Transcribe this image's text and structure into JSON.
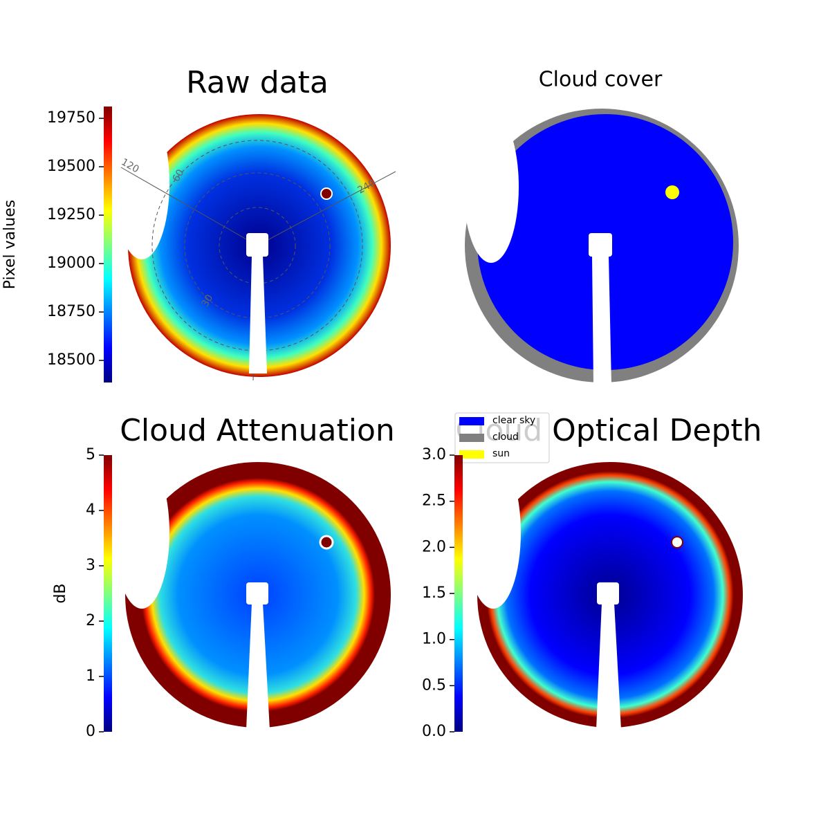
{
  "chart_data": [
    {
      "type": "image",
      "title": "Raw data",
      "colorbar_label": "Pixel values",
      "colormap": "jet",
      "ylim": [
        18386,
        19811
      ],
      "yticks": [
        18500,
        18750,
        19000,
        19250,
        19500,
        19750
      ],
      "annotations": [
        "120",
        "60",
        "240",
        "30"
      ]
    },
    {
      "type": "image",
      "title": "Cloud cover",
      "categories": [
        "clear sky",
        "cloud",
        "sun"
      ],
      "colors": [
        "#0000ff",
        "#808080",
        "#ffff00"
      ]
    },
    {
      "type": "image",
      "title": "Cloud Attenuation",
      "colorbar_label": "dB",
      "colormap": "jet",
      "ylim": [
        0,
        5
      ],
      "yticks": [
        0,
        1,
        2,
        3,
        4,
        5
      ]
    },
    {
      "type": "image",
      "title": "Cloud Optical Depth",
      "colormap": "jet",
      "ylim": [
        0,
        3
      ],
      "yticks": [
        {
          "value": 0,
          "label": "0.0"
        },
        {
          "value": 0.5,
          "label": "0.5"
        },
        {
          "value": 1,
          "label": "1.0"
        },
        {
          "value": 1.5,
          "label": "1.5"
        },
        {
          "value": 2,
          "label": "2.0"
        },
        {
          "value": 2.5,
          "label": "2.5"
        },
        {
          "value": 3,
          "label": "3.0"
        }
      ]
    }
  ]
}
